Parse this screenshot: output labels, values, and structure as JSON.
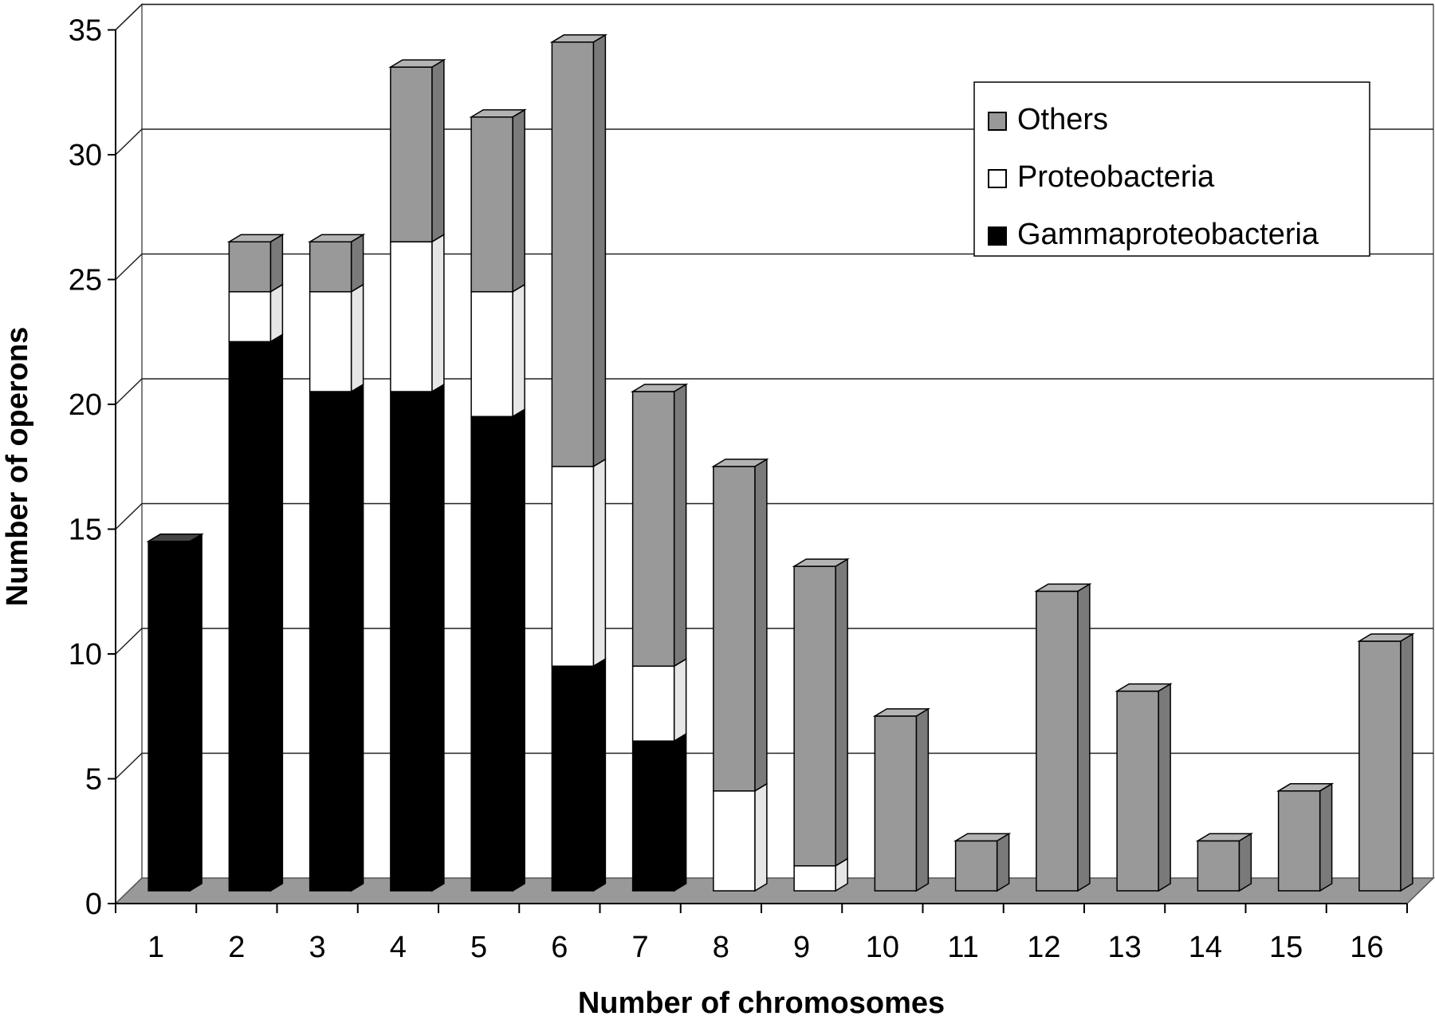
{
  "chart_data": {
    "type": "bar",
    "stacked": true,
    "style": "3d",
    "xlabel": "Number of chromosomes",
    "ylabel": "Number of operons",
    "ylim": [
      0,
      35
    ],
    "yticks": [
      "0",
      "5",
      "10",
      "15",
      "20",
      "25",
      "30",
      "35"
    ],
    "categories": [
      "1",
      "2",
      "3",
      "4",
      "5",
      "6",
      "7",
      "8",
      "9",
      "10",
      "11",
      "12",
      "13",
      "14",
      "15",
      "16"
    ],
    "series": [
      {
        "name": "Gammaproteobacteria",
        "color": "#000000",
        "values": [
          14,
          22,
          20,
          20,
          19,
          9,
          6,
          0,
          0,
          0,
          0,
          0,
          0,
          0,
          0,
          0
        ]
      },
      {
        "name": "Proteobacteria",
        "color": "#ffffff",
        "values": [
          0,
          2,
          4,
          6,
          5,
          8,
          3,
          4,
          1,
          0,
          0,
          0,
          0,
          0,
          0,
          0
        ]
      },
      {
        "name": "Others",
        "color": "#999999",
        "values": [
          0,
          2,
          2,
          7,
          7,
          17,
          11,
          13,
          12,
          7,
          2,
          12,
          8,
          2,
          4,
          10
        ]
      }
    ],
    "legend": {
      "position": "top-right",
      "order": [
        "Others",
        "Proteobacteria",
        "Gammaproteobacteria"
      ]
    },
    "grid": true
  }
}
